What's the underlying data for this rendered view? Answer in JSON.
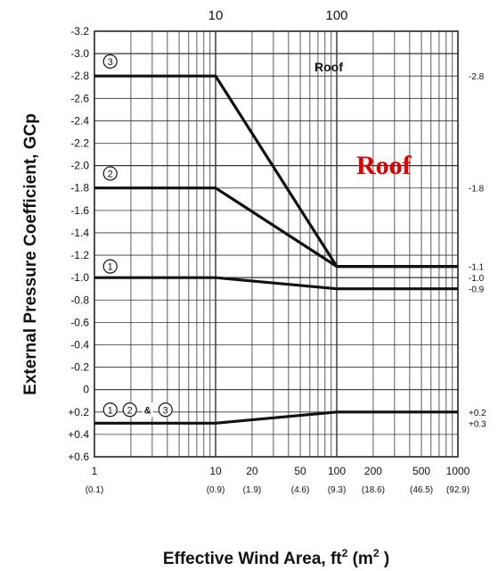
{
  "chart_data": {
    "type": "line",
    "x_scale": "log",
    "y_inverted": true,
    "ylabel": "External Pressure Coefficient, GCp",
    "xlabel_main": "Effective Wind Area, ft",
    "xlabel_sup": "2",
    "xlabel_paren_open": "(m",
    "xlabel_paren_sup": "2",
    "xlabel_paren_close": ")",
    "title_inside": "Roof",
    "overlay_label": "Roof",
    "xlim": [
      1,
      1000
    ],
    "ylim": [
      -3.2,
      0.6
    ],
    "grid": true,
    "y_ticks": [
      {
        "v": -3.2,
        "label": "-3.2",
        "major": false
      },
      {
        "v": -3.0,
        "label": "-3.0",
        "major": true
      },
      {
        "v": -2.8,
        "label": "-2.8",
        "major": false
      },
      {
        "v": -2.6,
        "label": "-2.6",
        "major": false
      },
      {
        "v": -2.4,
        "label": "-2.4",
        "major": false
      },
      {
        "v": -2.2,
        "label": "-2.2",
        "major": false
      },
      {
        "v": -2.0,
        "label": "-2.0",
        "major": true
      },
      {
        "v": -1.8,
        "label": "-1.8",
        "major": false
      },
      {
        "v": -1.6,
        "label": "-1.6",
        "major": false
      },
      {
        "v": -1.4,
        "label": "-1.4",
        "major": false
      },
      {
        "v": -1.2,
        "label": "-1.2",
        "major": false
      },
      {
        "v": -1.0,
        "label": "-1.0",
        "major": true
      },
      {
        "v": -0.8,
        "label": "-0.8",
        "major": false
      },
      {
        "v": -0.6,
        "label": "-0.6",
        "major": false
      },
      {
        "v": -0.4,
        "label": "-0.4",
        "major": false
      },
      {
        "v": -0.2,
        "label": "-0.2",
        "major": false
      },
      {
        "v": 0.0,
        "label": "0",
        "major": true
      },
      {
        "v": 0.2,
        "label": "+0.2",
        "major": false
      },
      {
        "v": 0.4,
        "label": "+0.4",
        "major": false
      },
      {
        "v": 0.6,
        "label": "+0.6",
        "major": false
      }
    ],
    "x_gridlines": [
      1,
      2,
      3,
      4,
      5,
      6,
      7,
      8,
      9,
      10,
      20,
      30,
      40,
      50,
      60,
      70,
      80,
      90,
      100,
      200,
      300,
      400,
      500,
      600,
      700,
      800,
      900,
      1000
    ],
    "x_tick_labels": [
      {
        "x": 1,
        "label": "1",
        "sub": "(0.1)"
      },
      {
        "x": 10,
        "label": "10",
        "sub": "(0.9)"
      },
      {
        "x": 20,
        "label": "20",
        "sub": "(1.9)"
      },
      {
        "x": 50,
        "label": "50",
        "sub": "(4.6)"
      },
      {
        "x": 100,
        "label": "100",
        "sub": "(9.3)"
      },
      {
        "x": 200,
        "label": "200",
        "sub": "(18.6)"
      },
      {
        "x": 500,
        "label": "500",
        "sub": "(46.5)"
      },
      {
        "x": 1000,
        "label": "1000",
        "sub": "(92.9)"
      }
    ],
    "top_ticks": [
      {
        "x": 10,
        "label": "10"
      },
      {
        "x": 100,
        "label": "100"
      }
    ],
    "series": [
      {
        "name": "3",
        "points": [
          [
            1,
            -2.8
          ],
          [
            10,
            -2.8
          ],
          [
            100,
            -1.1
          ],
          [
            1000,
            -1.1
          ]
        ]
      },
      {
        "name": "2",
        "points": [
          [
            1,
            -1.8
          ],
          [
            10,
            -1.8
          ],
          [
            100,
            -1.1
          ],
          [
            1000,
            -1.1
          ]
        ]
      },
      {
        "name": "1",
        "points": [
          [
            1,
            -1.0
          ],
          [
            10,
            -1.0
          ],
          [
            100,
            -0.9
          ],
          [
            1000,
            -0.9
          ]
        ]
      },
      {
        "name": "1, 2 & 3",
        "points": [
          [
            1,
            0.3
          ],
          [
            10,
            0.3
          ],
          [
            100,
            0.2
          ],
          [
            1000,
            0.2
          ]
        ]
      }
    ],
    "series_labels": [
      {
        "kind": "circles",
        "items": [
          "3"
        ],
        "x": 1.35,
        "y": -2.93
      },
      {
        "kind": "circles",
        "items": [
          "2"
        ],
        "x": 1.35,
        "y": -1.93
      },
      {
        "kind": "circles",
        "items": [
          "1"
        ],
        "x": 1.35,
        "y": -1.1
      },
      {
        "kind": "group",
        "items": [
          "1",
          "2",
          "3"
        ],
        "amp": "&",
        "x": 1.35,
        "y": 0.18
      }
    ],
    "right_labels": [
      {
        "y": -2.8,
        "label": "-2.8"
      },
      {
        "y": -1.8,
        "label": "-1.8"
      },
      {
        "y": -1.1,
        "label": "-1.1"
      },
      {
        "y": -1.0,
        "label": "-1.0"
      },
      {
        "y": -0.9,
        "label": "-0.9"
      },
      {
        "y": 0.2,
        "label": "+0.2"
      },
      {
        "y": 0.3,
        "label": "+0.3"
      }
    ]
  }
}
